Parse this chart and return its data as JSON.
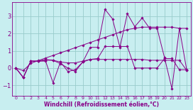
{
  "xlabel": "Windchill (Refroidissement éolien,°C)",
  "xlim": [
    -0.5,
    23.5
  ],
  "ylim": [
    -1.6,
    3.8
  ],
  "yticks": [
    -1,
    0,
    1,
    2,
    3
  ],
  "xticks": [
    0,
    1,
    2,
    3,
    4,
    5,
    6,
    7,
    8,
    9,
    10,
    11,
    12,
    13,
    14,
    15,
    16,
    17,
    18,
    19,
    20,
    21,
    22,
    23
  ],
  "bg_color": "#c8eef0",
  "line_color": "#880088",
  "grid_color": "#99cccc",
  "series1": [
    0.0,
    -0.55,
    0.4,
    0.4,
    0.4,
    -0.85,
    0.35,
    -0.2,
    -0.1,
    0.35,
    1.2,
    1.2,
    3.4,
    2.85,
    1.2,
    3.15,
    2.4,
    2.9,
    2.3,
    2.3,
    0.6,
    -1.2,
    2.3,
    -0.15
  ],
  "series2": [
    0.0,
    -0.55,
    0.4,
    0.4,
    0.5,
    0.45,
    0.25,
    0.0,
    -0.2,
    0.35,
    0.5,
    0.5,
    0.5,
    0.5,
    0.5,
    0.5,
    0.5,
    0.5,
    0.45,
    0.45,
    0.45,
    0.45,
    0.45,
    -0.15
  ],
  "series3": [
    0.0,
    -0.55,
    0.4,
    0.4,
    0.45,
    0.45,
    0.35,
    0.3,
    0.3,
    0.4,
    0.5,
    0.55,
    1.25,
    1.25,
    1.25,
    1.25,
    0.0,
    0.0,
    0.0,
    0.0,
    0.55,
    0.55,
    -0.1,
    -0.1
  ],
  "series4": [
    0.0,
    -0.15,
    0.27,
    0.43,
    0.58,
    0.73,
    0.88,
    1.03,
    1.18,
    1.33,
    1.48,
    1.63,
    1.78,
    1.93,
    2.08,
    2.23,
    2.3,
    2.37,
    2.37,
    2.37,
    2.37,
    2.37,
    2.3,
    2.3
  ]
}
